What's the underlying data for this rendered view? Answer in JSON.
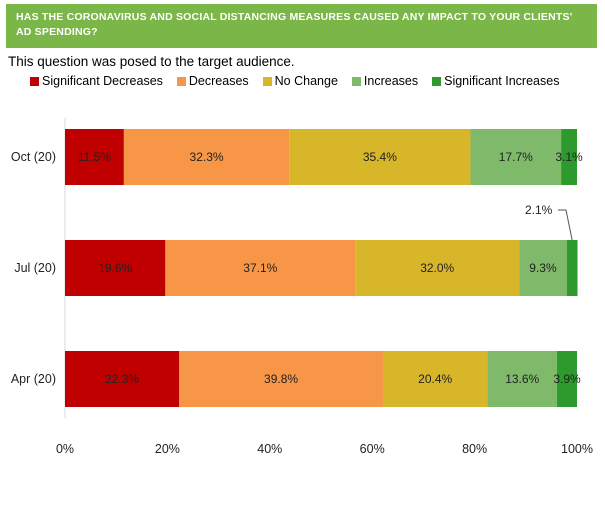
{
  "header": {
    "title": "HAS THE CORONAVIRUS AND SOCIAL DISTANCING MEASURES CAUSED ANY IMPACT TO YOUR CLIENTS' AD SPENDING?"
  },
  "subtitle": "This question was posed to the target audience.",
  "colors": {
    "header_bg": "#7ab648",
    "significant_decreases": "#c00000",
    "decreases": "#f79646",
    "no_change": "#d8b62a",
    "increases": "#7fba6a",
    "significant_increases": "#2e9a2e"
  },
  "chart_data": {
    "type": "bar",
    "orientation": "horizontal",
    "stacked": true,
    "categories": [
      "Oct (20)",
      "Jul (20)",
      "Apr (20)"
    ],
    "series": [
      {
        "name": "Significant Decreases",
        "values": [
          11.5,
          19.6,
          22.3
        ],
        "labels": [
          "11.5%",
          "19.6%",
          "22.3%"
        ]
      },
      {
        "name": "Decreases",
        "values": [
          32.3,
          37.1,
          39.8
        ],
        "labels": [
          "32.3%",
          "37.1%",
          "39.8%"
        ]
      },
      {
        "name": "No Change",
        "values": [
          35.4,
          32.0,
          20.4
        ],
        "labels": [
          "35.4%",
          "32.0%",
          "20.4%"
        ]
      },
      {
        "name": "Increases",
        "values": [
          17.7,
          9.3,
          13.6
        ],
        "labels": [
          "17.7%",
          "9.3%",
          "13.6%"
        ]
      },
      {
        "name": "Significant Increases",
        "values": [
          3.1,
          2.1,
          3.9
        ],
        "labels": [
          "3.1%",
          "2.1%",
          "3.9%"
        ]
      }
    ],
    "xlim": [
      0,
      100
    ],
    "x_ticks": [
      "0%",
      "20%",
      "40%",
      "60%",
      "80%",
      "100%"
    ],
    "legend_position": "top",
    "grid": false
  }
}
